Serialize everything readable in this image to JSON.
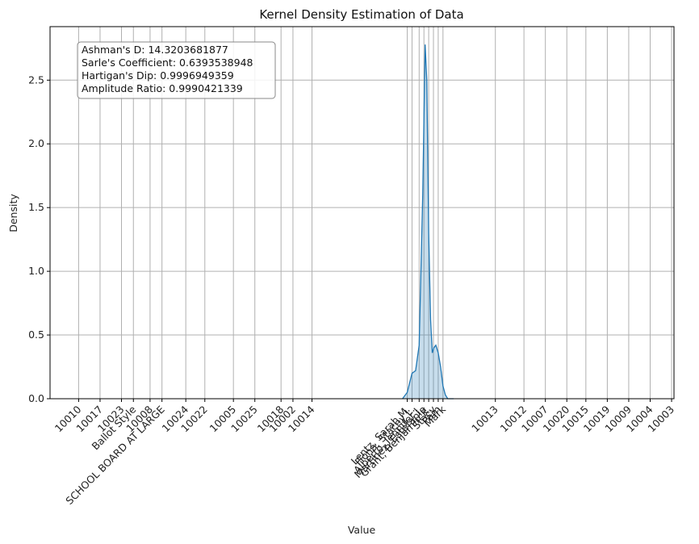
{
  "chart_data": {
    "type": "area",
    "title": "Kernel Density Estimation of Data",
    "xlabel": "Value",
    "ylabel": "Density",
    "ylim": [
      0,
      2.92
    ],
    "y_ticks": [
      "0.0",
      "0.5",
      "1.0",
      "1.5",
      "2.0",
      "2.5"
    ],
    "y_tick_values": [
      0,
      0.5,
      1.0,
      1.5,
      2.0,
      2.5
    ],
    "grid": true,
    "x_tick_labels": [
      "10010",
      "10017",
      "10023",
      "Ballot Style",
      "10008",
      "SCHOOL BOARD AT LARGE",
      "10024",
      "10022",
      "10005",
      "10025",
      "10018",
      "10002",
      "10014",
      "Lentz, Sarah M.",
      "Fiona, Stacey L.",
      "Alberto, Jennifer J.",
      "Martinez, Estefania",
      "Grant, Benjamin K.",
      "Stacy",
      "Pam",
      "Mark",
      "10013",
      "10012",
      "10007",
      "10020",
      "10015",
      "10019",
      "10009",
      "10004",
      "10003"
    ],
    "x_tick_positions": [
      0.0,
      0.9,
      1.8,
      2.3,
      3.0,
      3.5,
      4.5,
      5.3,
      6.5,
      7.4,
      8.5,
      9.0,
      9.8,
      13.8,
      14.0,
      14.3,
      14.5,
      14.7,
      14.9,
      15.1,
      15.3,
      17.5,
      18.7,
      19.6,
      20.5,
      21.3,
      22.2,
      23.1,
      24.0,
      24.9
    ],
    "xlim": [
      -1.2,
      25.0
    ],
    "density_curve": {
      "x": [
        13.6,
        13.8,
        14.0,
        14.15,
        14.3,
        14.45,
        14.55,
        14.62,
        14.7,
        14.78,
        14.85,
        14.92,
        15.0,
        15.1,
        15.2,
        15.3,
        15.4,
        15.5,
        15.6,
        15.75
      ],
      "y": [
        0.0,
        0.05,
        0.2,
        0.22,
        0.42,
        1.6,
        2.78,
        2.5,
        1.3,
        0.62,
        0.36,
        0.4,
        0.42,
        0.36,
        0.25,
        0.1,
        0.03,
        0.0,
        0.0,
        0.0
      ]
    },
    "colors": {
      "line": "#1f77b4",
      "fill": "#1f77b4",
      "grid": "#b0b0b0"
    },
    "stats_box": [
      "Ashman's D: 14.3203681877",
      "Sarle's Coefficient: 0.6393538948",
      "Hartigan's Dip: 0.9996949359",
      "Amplitude Ratio: 0.9990421339"
    ],
    "stats_box_placement": "top-left"
  }
}
